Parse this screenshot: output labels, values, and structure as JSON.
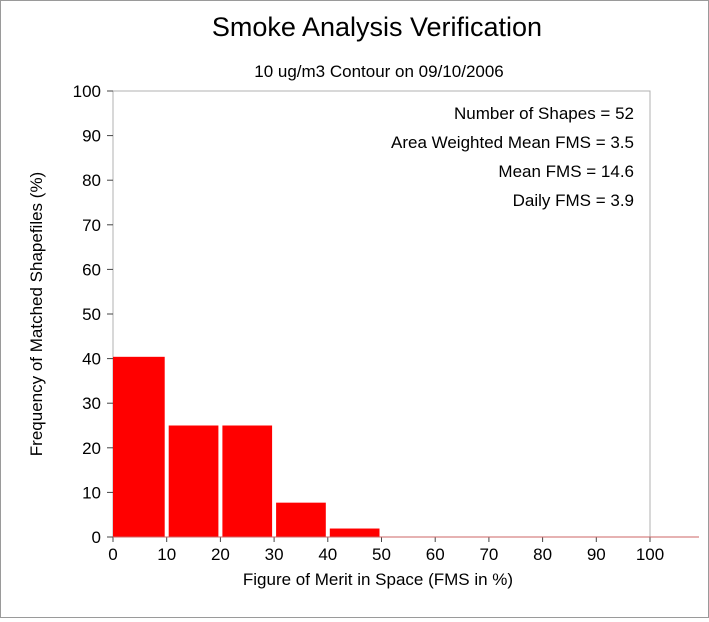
{
  "chart_data": {
    "type": "bar",
    "title": "Smoke Analysis Verification",
    "subtitle": "10 ug/m3 Contour on 09/10/2006",
    "xlabel": "Figure of Merit in Space (FMS in %)",
    "ylabel": "Frequency of Matched Shapefiles (%)",
    "xlim": [
      0,
      100
    ],
    "ylim": [
      0,
      100
    ],
    "x_ticks": [
      "0",
      "10",
      "20",
      "30",
      "40",
      "50",
      "60",
      "70",
      "80",
      "90",
      "100"
    ],
    "y_ticks": [
      "0",
      "10",
      "20",
      "30",
      "40",
      "50",
      "60",
      "70",
      "80",
      "90",
      "100"
    ],
    "bins": [
      {
        "start": 0,
        "end": 10,
        "value": 40.4
      },
      {
        "start": 10,
        "end": 20,
        "value": 25.0
      },
      {
        "start": 20,
        "end": 30,
        "value": 25.0
      },
      {
        "start": 30,
        "end": 40,
        "value": 7.7
      },
      {
        "start": 40,
        "end": 50,
        "value": 1.9
      },
      {
        "start": 50,
        "end": 60,
        "value": 0
      },
      {
        "start": 60,
        "end": 70,
        "value": 0
      },
      {
        "start": 70,
        "end": 80,
        "value": 0
      },
      {
        "start": 80,
        "end": 90,
        "value": 0
      },
      {
        "start": 90,
        "end": 100,
        "value": 0
      }
    ],
    "bar_color": "#ff0000",
    "grid": false,
    "annotations": [
      "Number of Shapes = 52",
      "Area Weighted Mean FMS = 3.5",
      "Mean FMS = 14.6",
      "Daily FMS = 3.9"
    ]
  }
}
